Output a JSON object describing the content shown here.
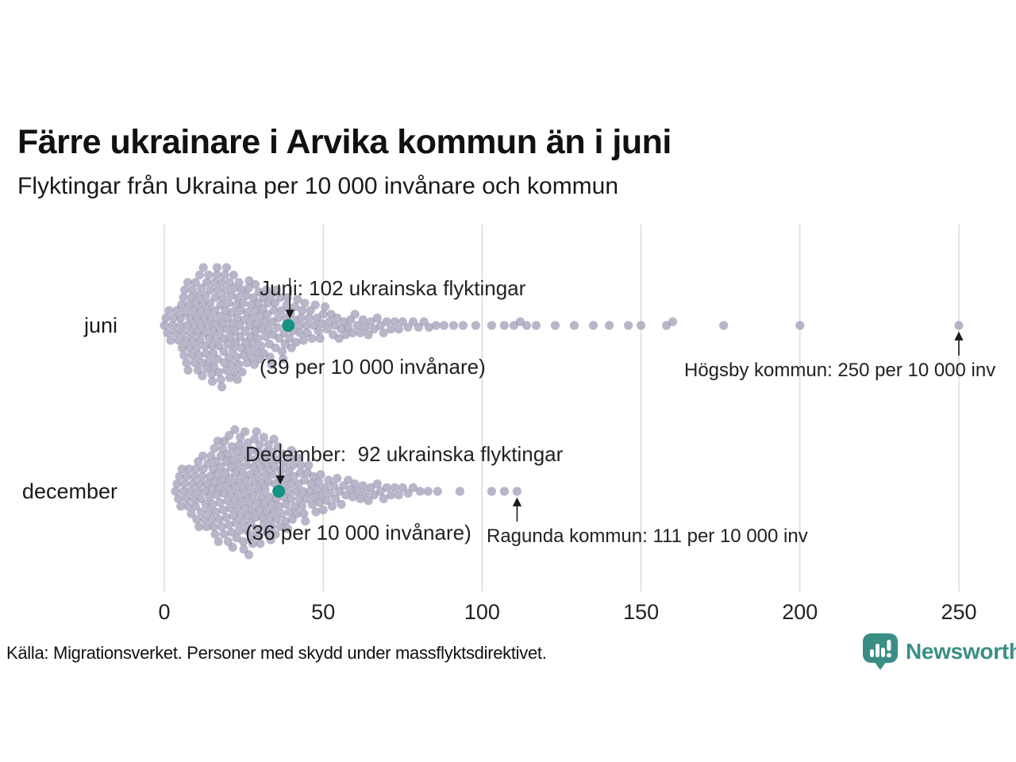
{
  "title": "Färre ukrainare i Arvika kommun än i juni",
  "subtitle": "Flyktingar från Ukraina per 10 000 invånare och kommun",
  "source": "Källa: Migrationsverket. Personer med skydd under massflyktsdirektivet.",
  "logo": {
    "text": "Newsworthy",
    "color": "#3a8e86"
  },
  "colors": {
    "dot": "#a19db8",
    "dot_opacity": 0.75,
    "highlight": "#169183",
    "gridline": "#d6d6d6",
    "arrow": "#1a1a1a",
    "tick_text": "#222222"
  },
  "chart_data": {
    "type": "beeswarm",
    "title": "Färre ukrainare i Arvika kommun än i juni",
    "subtitle": "Flyktingar från Ukraina per 10 000 invånare och kommun",
    "xlabel": "",
    "ylabel": "",
    "xlim": [
      0,
      250
    ],
    "x_ticks": [
      0,
      50,
      100,
      150,
      200,
      250
    ],
    "grid": "vertical",
    "rows": [
      {
        "label": "juni",
        "highlight": {
          "value": 39,
          "refugees": 102,
          "per_10000": 39,
          "line1": "Juni: 102 ukrainska flyktingar",
          "line2": "(39 per 10 000 invånare)"
        },
        "outlier": {
          "value": 250,
          "label": "Högsby kommun: 250 per 10 000 inv"
        },
        "values": [
          0,
          0.5,
          1,
          1.5,
          2,
          2.5,
          3,
          3.5,
          4,
          4.5,
          5,
          5.2,
          5.4,
          5.6,
          5.8,
          6,
          6.2,
          6.4,
          6.6,
          6.8,
          7,
          7.2,
          7.4,
          7.5,
          7.7,
          7.9,
          8.1,
          8.3,
          8.5,
          8.7,
          8.9,
          9,
          9.2,
          9.4,
          9.6,
          9.8,
          10,
          10.2,
          10.3,
          10.5,
          10.6,
          10.8,
          10.9,
          11.1,
          11.3,
          11.4,
          11.6,
          11.7,
          11.9,
          12,
          12.2,
          12.3,
          12.5,
          12.7,
          12.8,
          13,
          13.1,
          13.3,
          13.4,
          13.6,
          13.8,
          13.9,
          14.1,
          14.2,
          14.4,
          14.5,
          14.7,
          14.9,
          15,
          15.1,
          15.3,
          15.4,
          15.6,
          15.7,
          15.9,
          16,
          16.2,
          16.3,
          16.5,
          16.6,
          16.8,
          16.9,
          17.1,
          17.2,
          17.4,
          17.5,
          17.7,
          17.8,
          18,
          18.1,
          18.3,
          18.4,
          18.6,
          18.7,
          18.9,
          19,
          19.2,
          19.3,
          19.5,
          19.6,
          19.8,
          19.9,
          20,
          20.2,
          20.3,
          20.5,
          20.6,
          20.8,
          21,
          21.1,
          21.3,
          21.4,
          21.6,
          21.8,
          21.9,
          22.1,
          22.2,
          22.4,
          22.6,
          22.7,
          22.9,
          23,
          23.2,
          23.4,
          23.5,
          23.7,
          23.8,
          24,
          24.2,
          24.3,
          24.5,
          24.8,
          25,
          25.2,
          25.4,
          25.6,
          25.8,
          26,
          26.2,
          26.4,
          26.5,
          26.7,
          26.9,
          27.1,
          27.3,
          27.5,
          27.7,
          27.9,
          28.1,
          28.3,
          28.5,
          28.6,
          28.8,
          29,
          29.2,
          29.4,
          29.6,
          29.8,
          30,
          30.2,
          30.5,
          30.7,
          31,
          31.2,
          31.4,
          31.7,
          31.9,
          32.1,
          32.4,
          32.6,
          32.9,
          33.1,
          33.3,
          33.6,
          33.8,
          34,
          34.3,
          34.5,
          34.8,
          35,
          35.3,
          35.6,
          35.9,
          36.2,
          36.5,
          36.8,
          37.1,
          37.4,
          37.7,
          38,
          38.3,
          38.5,
          38.8,
          39.4,
          39.7,
          40,
          40.4,
          40.8,
          41.1,
          41.5,
          41.9,
          42.3,
          42.7,
          43,
          43.4,
          43.8,
          44.2,
          44.6,
          45,
          45.5,
          46,
          46.5,
          47,
          47.5,
          48,
          48.5,
          49,
          49.5,
          50,
          50.6,
          51.3,
          51.9,
          52.5,
          53.1,
          53.8,
          54.4,
          55,
          55.7,
          56.4,
          57.1,
          57.9,
          58.6,
          59.3,
          60,
          60.8,
          61.7,
          62.5,
          63.3,
          64.2,
          65,
          66,
          67,
          68,
          69,
          70,
          71.3,
          72.5,
          73.8,
          75,
          76.7,
          78.3,
          80,
          81.7,
          83.3,
          85.5,
          88,
          91,
          94,
          98,
          103,
          107,
          110,
          112,
          114,
          117,
          123,
          129,
          135,
          140,
          146,
          150,
          158,
          160,
          176,
          200,
          250
        ]
      },
      {
        "label": "december",
        "highlight": {
          "value": 36,
          "refugees": 92,
          "per_10000": 36,
          "line1": "December:  92 ukrainska flyktingar",
          "line2": "(36 per 10 000 invånare)"
        },
        "outlier": {
          "value": 111,
          "label": "Ragunda kommun: 111 per 10 000 inv"
        },
        "values": [
          3.5,
          4,
          4.4,
          4.8,
          5.2,
          5.6,
          6,
          6.4,
          6.8,
          7.1,
          7.5,
          7.8,
          8.2,
          8.5,
          8.9,
          9.2,
          9.5,
          9.8,
          10,
          10.2,
          10.5,
          10.7,
          10.9,
          11.2,
          11.4,
          11.6,
          11.9,
          12.1,
          12.3,
          12.6,
          12.8,
          13,
          13.3,
          13.5,
          13.7,
          14,
          14.2,
          14.4,
          14.7,
          14.9,
          15,
          15.2,
          15.3,
          15.5,
          15.7,
          15.8,
          16,
          16.2,
          16.3,
          16.5,
          16.7,
          16.8,
          17,
          17.2,
          17.3,
          17.5,
          17.7,
          17.8,
          18,
          18.2,
          18.3,
          18.5,
          18.7,
          18.8,
          19,
          19.2,
          19.4,
          19.5,
          19.7,
          19.9,
          20,
          20.1,
          20.3,
          20.4,
          20.6,
          20.7,
          20.9,
          21,
          21.2,
          21.3,
          21.5,
          21.6,
          21.8,
          21.9,
          22.1,
          22.2,
          22.4,
          22.5,
          22.7,
          22.8,
          23,
          23.1,
          23.3,
          23.4,
          23.6,
          23.7,
          23.9,
          24,
          24.2,
          24.3,
          24.5,
          24.6,
          24.8,
          24.9,
          25,
          25.1,
          25.3,
          25.4,
          25.6,
          25.7,
          25.9,
          26,
          26.2,
          26.3,
          26.5,
          26.6,
          26.8,
          26.9,
          27.1,
          27.2,
          27.4,
          27.5,
          27.7,
          27.8,
          28,
          28.1,
          28.3,
          28.4,
          28.6,
          28.7,
          28.9,
          29,
          29.2,
          29.3,
          29.5,
          29.6,
          29.8,
          29.9,
          30,
          30.2,
          30.3,
          30.5,
          30.7,
          30.8,
          31,
          31.2,
          31.3,
          31.5,
          31.7,
          31.8,
          32,
          32.2,
          32.3,
          32.5,
          32.7,
          32.8,
          33,
          33.2,
          33.3,
          33.5,
          33.7,
          33.8,
          34,
          34.2,
          34.4,
          34.5,
          34.7,
          34.9,
          35,
          35.2,
          35.4,
          35.6,
          35.8,
          36.1,
          36.3,
          36.5,
          36.7,
          37,
          37.2,
          37.4,
          37.6,
          37.9,
          38.1,
          38.3,
          38.5,
          38.8,
          39,
          39.2,
          39.4,
          39.6,
          39.8,
          39.9,
          40,
          40.3,
          40.6,
          40.8,
          41.1,
          41.4,
          41.7,
          41.9,
          42.2,
          42.5,
          42.8,
          43,
          43.3,
          43.6,
          43.9,
          44.1,
          44.4,
          44.7,
          45,
          45.4,
          45.8,
          46.2,
          46.5,
          46.9,
          47.3,
          47.7,
          48.1,
          48.5,
          48.8,
          49.2,
          49.6,
          50,
          50.6,
          51.1,
          51.7,
          52.2,
          52.8,
          53.3,
          53.9,
          54.4,
          55,
          55.7,
          56.4,
          57.1,
          57.9,
          58.6,
          59.3,
          60,
          60.8,
          61.7,
          62.5,
          63.3,
          64.2,
          65,
          66,
          67,
          68,
          69,
          70,
          71.3,
          72.5,
          73.8,
          75,
          76.7,
          78.3,
          80.5,
          83,
          86,
          93,
          103,
          107,
          111
        ]
      }
    ]
  }
}
